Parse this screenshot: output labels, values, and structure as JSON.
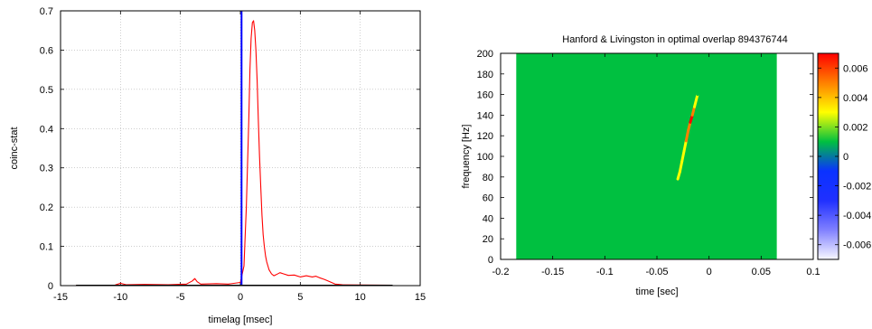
{
  "chart_data": [
    {
      "type": "line",
      "title": "",
      "xlabel": "timelag [msec]",
      "ylabel": "coinc-stat",
      "xlim": [
        -15,
        15
      ],
      "ylim": [
        0,
        0.7
      ],
      "xticks": [
        "-15",
        "-10",
        "-5",
        "0",
        "5",
        "10",
        "15"
      ],
      "yticks": [
        "0",
        "0.1",
        "0.2",
        "0.3",
        "0.4",
        "0.5",
        "0.6",
        "0.7"
      ],
      "grid": true,
      "legend": "none",
      "series": [
        {
          "color": "#ff0000",
          "x": [
            -13.7,
            -10.5,
            -10.0,
            -9.5,
            -8.0,
            -6.0,
            -4.5,
            -4.0,
            -3.8,
            -3.6,
            -3.3,
            -2.0,
            -1.0,
            0.0,
            0.3,
            0.5,
            0.7,
            0.8,
            0.9,
            1.0,
            1.1,
            1.2,
            1.3,
            1.4,
            1.5,
            1.6,
            1.7,
            1.8,
            1.9,
            2.0,
            2.1,
            2.2,
            2.4,
            2.6,
            2.8,
            3.0,
            3.3,
            3.6,
            4.0,
            4.5,
            5.0,
            5.5,
            6.0,
            6.3,
            6.6,
            7.0,
            7.3,
            7.6,
            7.9,
            8.5,
            12.7
          ],
          "y": [
            0.001,
            0.001,
            0.006,
            0.002,
            0.003,
            0.002,
            0.004,
            0.012,
            0.018,
            0.01,
            0.004,
            0.005,
            0.004,
            0.008,
            0.05,
            0.2,
            0.42,
            0.55,
            0.63,
            0.67,
            0.675,
            0.65,
            0.6,
            0.52,
            0.42,
            0.33,
            0.25,
            0.18,
            0.13,
            0.1,
            0.075,
            0.06,
            0.04,
            0.03,
            0.025,
            0.028,
            0.033,
            0.03,
            0.026,
            0.027,
            0.022,
            0.025,
            0.022,
            0.024,
            0.02,
            0.016,
            0.012,
            0.008,
            0.004,
            0.002,
            0.001
          ]
        },
        {
          "color": "#0000ff",
          "x": [
            0.1,
            0.1
          ],
          "y": [
            0,
            0.7
          ]
        },
        {
          "color": "#000000",
          "x": [
            -13.7,
            12.7
          ],
          "y": [
            0.001,
            0.001
          ]
        }
      ]
    },
    {
      "type": "heatmap",
      "title": "Hanford & Livingston in optimal overlap 894376744",
      "xlabel": "time [sec]",
      "ylabel": "frequency [Hz]",
      "xlim": [
        -0.2,
        0.1
      ],
      "ylim": [
        0,
        200
      ],
      "xticks": [
        "-0.2",
        "-0.15",
        "-0.1",
        "-0.05",
        "0",
        "0.05",
        "0.1"
      ],
      "yticks": [
        "0",
        "20",
        "40",
        "60",
        "80",
        "100",
        "120",
        "140",
        "160",
        "180",
        "200"
      ],
      "data_extent_x": [
        -0.185,
        0.065
      ],
      "background_value": 0,
      "colorbar": {
        "range": [
          -0.007,
          0.007
        ],
        "ticks": [
          "0.006",
          "0.004",
          "0.002",
          "0",
          "-0.002",
          "-0.004",
          "-0.006"
        ],
        "colors": [
          "#f8f8ff",
          "#8080ff",
          "#2030ff",
          "#0a32ff",
          "#00c040",
          "#ffff00",
          "#ff8000",
          "#ff0000"
        ]
      },
      "chirp_track": [
        {
          "t": -0.03,
          "f": 78,
          "v": 0.002
        },
        {
          "t": -0.028,
          "f": 85,
          "v": 0.0025
        },
        {
          "t": -0.026,
          "f": 95,
          "v": 0.003
        },
        {
          "t": -0.024,
          "f": 105,
          "v": 0.0035
        },
        {
          "t": -0.022,
          "f": 115,
          "v": 0.004
        },
        {
          "t": -0.02,
          "f": 125,
          "v": 0.0045
        },
        {
          "t": -0.018,
          "f": 133,
          "v": 0.0055
        },
        {
          "t": -0.016,
          "f": 140,
          "v": 0.0065
        },
        {
          "t": -0.014,
          "f": 148,
          "v": 0.004
        },
        {
          "t": -0.011,
          "f": 160,
          "v": 0.001
        },
        {
          "t": -0.007,
          "f": 180,
          "v": 0.0005
        }
      ]
    }
  ]
}
